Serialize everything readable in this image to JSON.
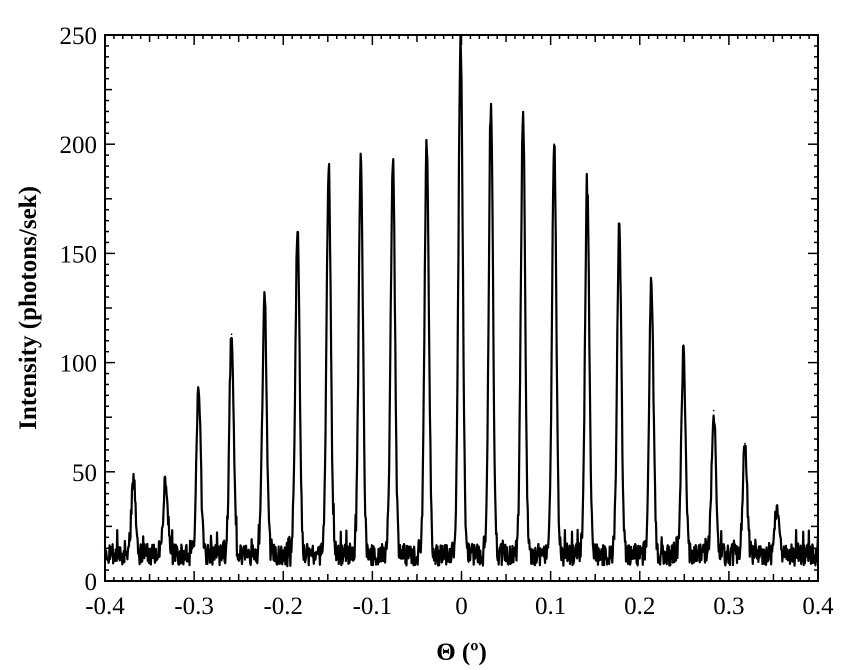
{
  "chart_data": {
    "type": "line",
    "title": "",
    "xlabel": "Θ (º)",
    "ylabel": "Intensity (photons/sek)",
    "xlim": [
      -0.4,
      0.4
    ],
    "ylim": [
      0,
      250
    ],
    "x_ticks": [
      -0.4,
      -0.3,
      -0.2,
      -0.1,
      0,
      0.1,
      0.2,
      0.3,
      0.4
    ],
    "x_tick_labels": [
      "-0.4",
      "-0.3",
      "-0.2",
      "-0.1",
      "0",
      "0.1",
      "0.2",
      "0.3",
      "0.4"
    ],
    "y_ticks": [
      0,
      50,
      100,
      150,
      200,
      250
    ],
    "y_tick_labels": [
      "0",
      "50",
      "100",
      "150",
      "200",
      "250"
    ],
    "grid": false,
    "legend": "none",
    "series": [
      {
        "color": "#000000",
        "peaks": [
          {
            "x": -0.368,
            "y": 45
          },
          {
            "x": -0.332,
            "y": 47
          },
          {
            "x": -0.295,
            "y": 88
          },
          {
            "x": -0.258,
            "y": 113
          },
          {
            "x": -0.221,
            "y": 131
          },
          {
            "x": -0.184,
            "y": 160
          },
          {
            "x": -0.149,
            "y": 189
          },
          {
            "x": -0.113,
            "y": 192
          },
          {
            "x": -0.077,
            "y": 192
          },
          {
            "x": -0.039,
            "y": 202
          },
          {
            "x": -0.001,
            "y": 248
          },
          {
            "x": 0.033,
            "y": 214
          },
          {
            "x": 0.069,
            "y": 213
          },
          {
            "x": 0.104,
            "y": 200
          },
          {
            "x": 0.141,
            "y": 180
          },
          {
            "x": 0.177,
            "y": 159
          },
          {
            "x": 0.213,
            "y": 136
          },
          {
            "x": 0.249,
            "y": 104
          },
          {
            "x": 0.283,
            "y": 78
          },
          {
            "x": 0.318,
            "y": 63
          },
          {
            "x": 0.354,
            "y": 34
          }
        ]
      }
    ]
  }
}
